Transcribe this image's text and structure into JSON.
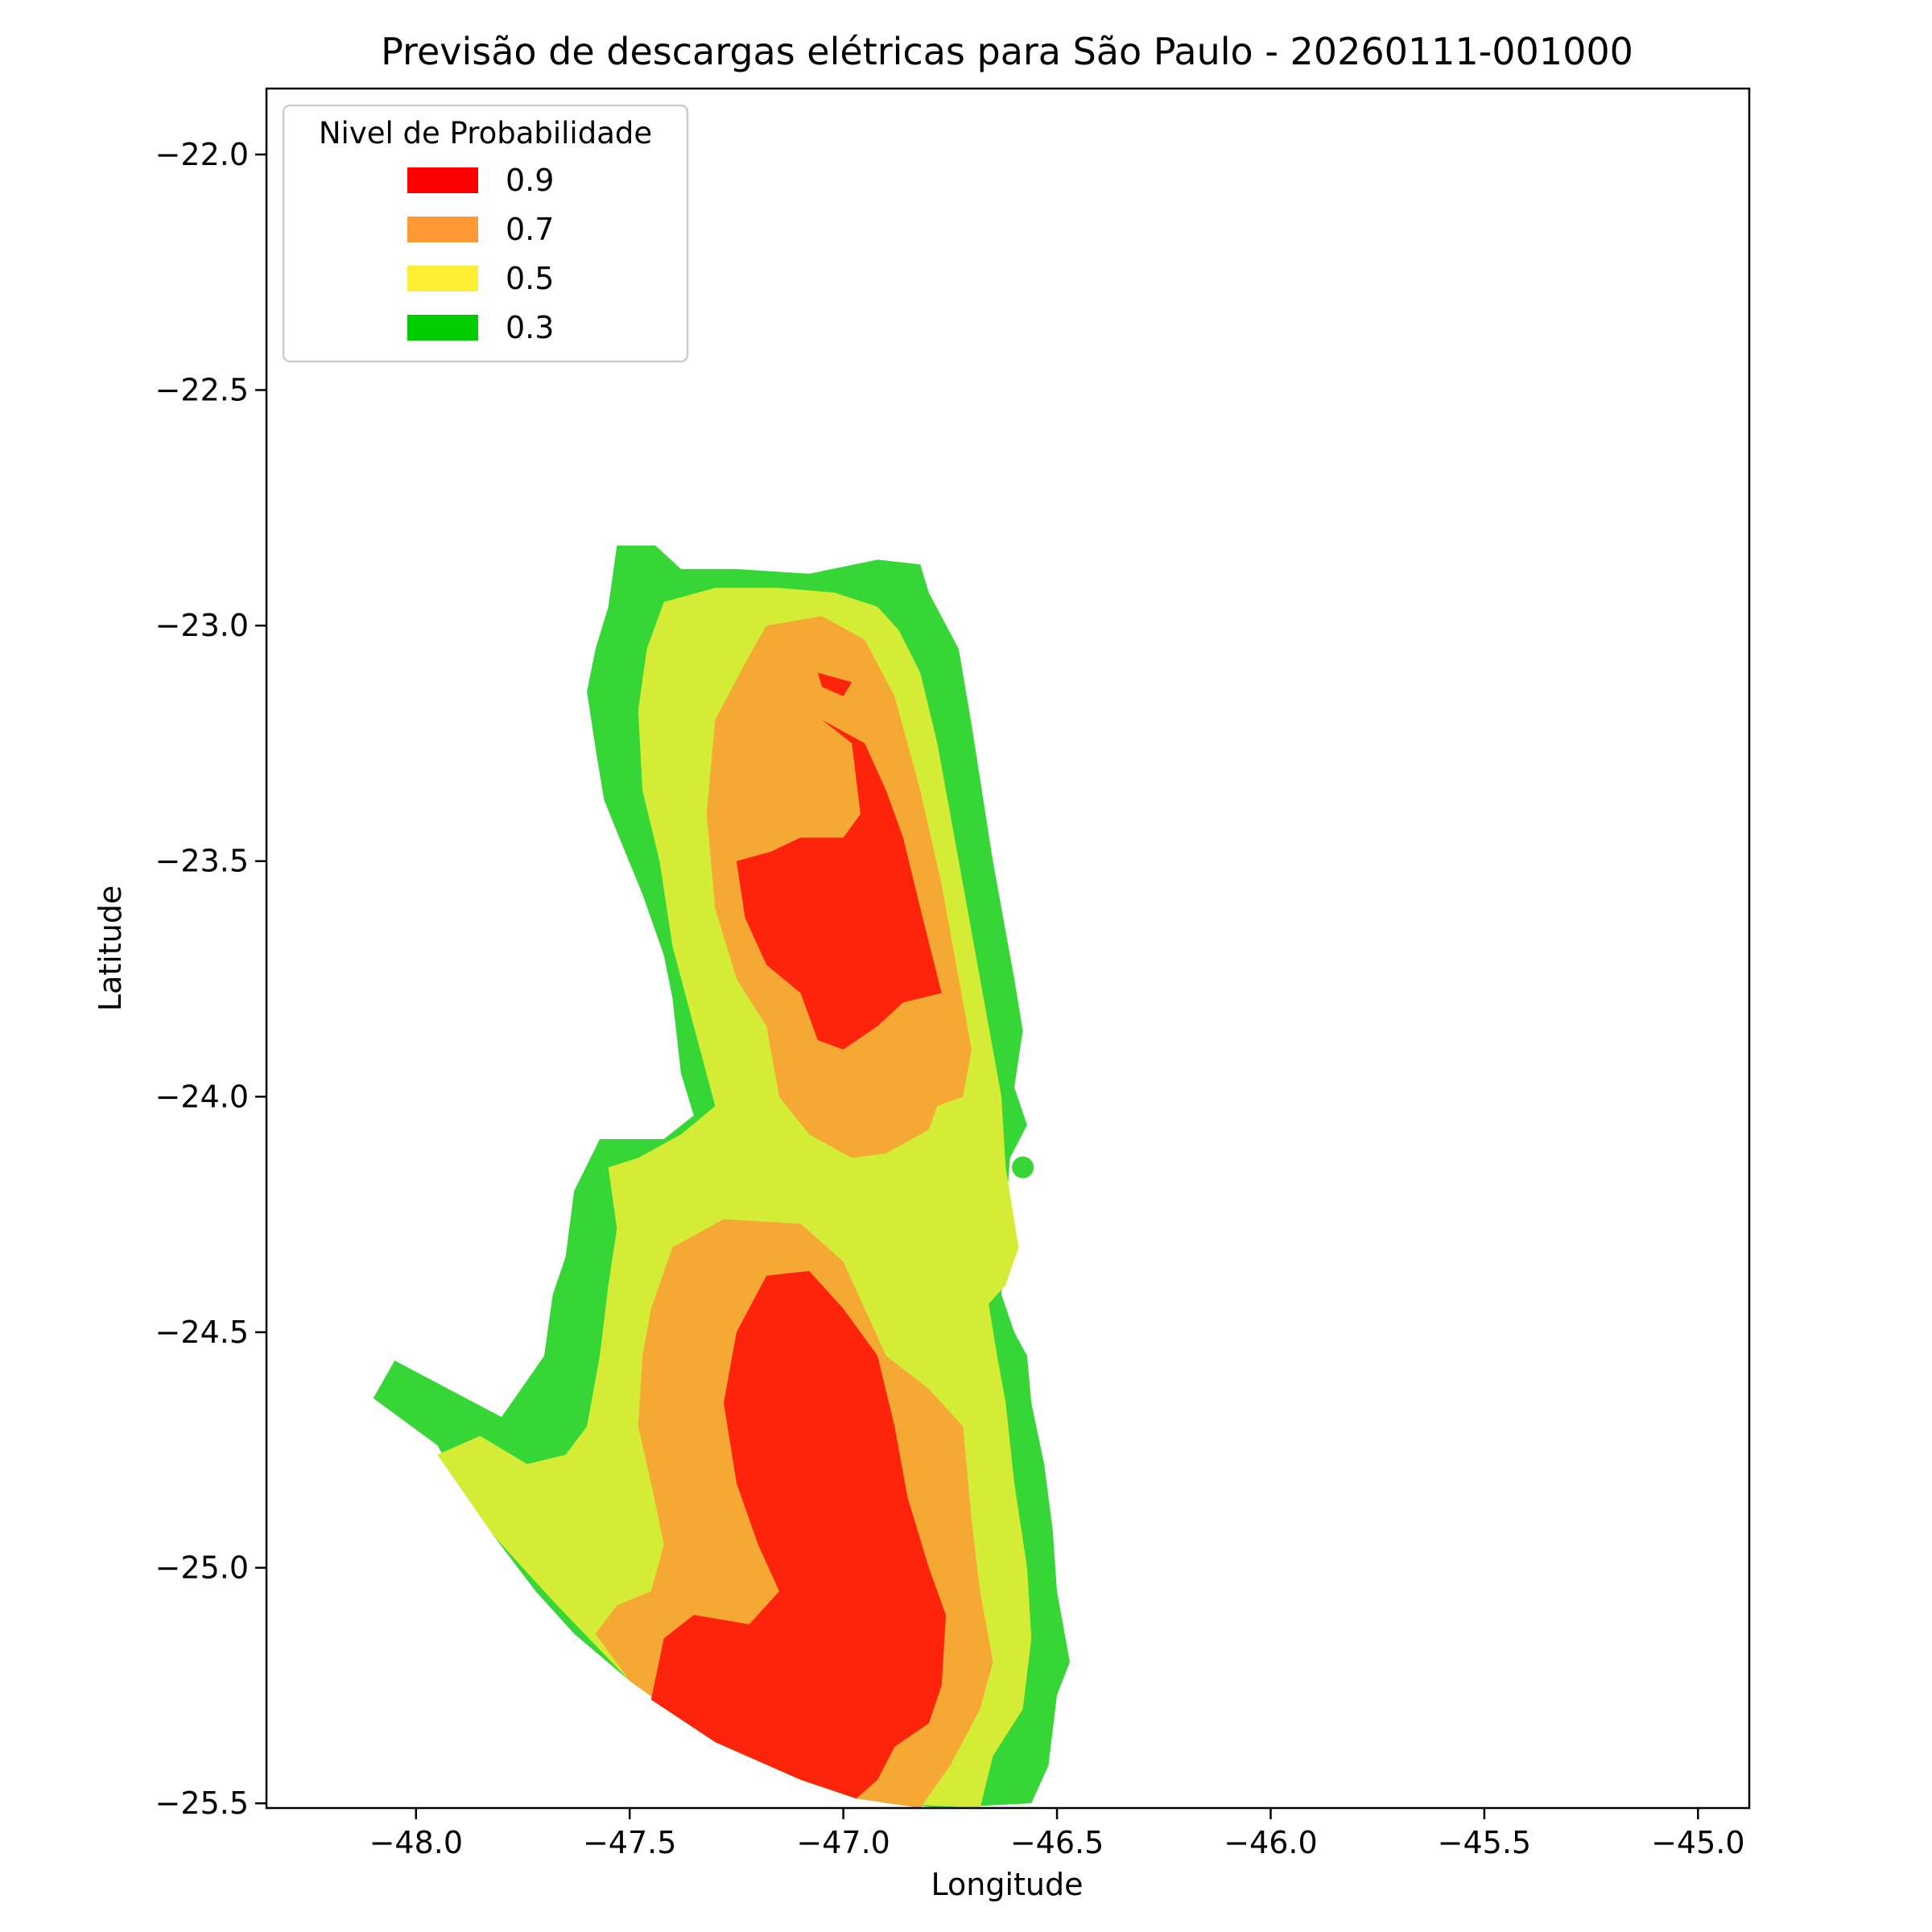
{
  "chart_data": {
    "type": "contour",
    "title": "Previsão de descargas elétricas para São Paulo - 20260111-001000",
    "xlabel": "Longitude",
    "ylabel": "Latitude",
    "xlim": [
      -48.35,
      -44.88
    ],
    "ylim": [
      -25.51,
      -21.86
    ],
    "xticks": [
      -48.0,
      -47.5,
      -47.0,
      -46.5,
      -46.0,
      -45.5,
      -45.0
    ],
    "yticks": [
      -22.0,
      -22.5,
      -23.0,
      -23.5,
      -24.0,
      -24.5,
      -25.0,
      -25.5
    ],
    "xtick_labels": [
      "−48.0",
      "−47.5",
      "−47.0",
      "−46.5",
      "−46.0",
      "−45.5",
      "−45.0"
    ],
    "ytick_labels": [
      "−22.0",
      "−22.5",
      "−23.0",
      "−23.5",
      "−24.0",
      "−24.5",
      "−25.0",
      "−25.5"
    ],
    "grid": false,
    "legend": {
      "title": "Nivel de Probabilidade",
      "placement": "top-left",
      "entries": [
        {
          "label": "0.9",
          "color": "#ff0000"
        },
        {
          "label": "0.7",
          "color": "#ff9933"
        },
        {
          "label": "0.5",
          "color": "#ffee33"
        },
        {
          "label": "0.3",
          "color": "#00cc00"
        }
      ]
    },
    "levels": [
      {
        "level": 0.3,
        "color": "#36d636",
        "polygons": [
          [
            [
              -47.53,
              -22.83
            ],
            [
              -47.44,
              -22.83
            ],
            [
              -47.38,
              -22.88
            ],
            [
              -47.25,
              -22.88
            ],
            [
              -47.08,
              -22.89
            ],
            [
              -46.92,
              -22.86
            ],
            [
              -46.82,
              -22.87
            ],
            [
              -46.8,
              -22.93
            ],
            [
              -46.73,
              -23.05
            ],
            [
              -46.7,
              -23.21
            ],
            [
              -46.65,
              -23.5
            ],
            [
              -46.6,
              -23.75
            ],
            [
              -46.58,
              -23.86
            ],
            [
              -46.6,
              -23.98
            ],
            [
              -46.57,
              -24.06
            ],
            [
              -46.61,
              -24.13
            ],
            [
              -46.62,
              -24.25
            ],
            [
              -46.63,
              -24.42
            ],
            [
              -46.6,
              -24.5
            ],
            [
              -46.57,
              -24.55
            ],
            [
              -46.56,
              -24.65
            ],
            [
              -46.53,
              -24.78
            ],
            [
              -46.51,
              -24.92
            ],
            [
              -46.5,
              -25.05
            ],
            [
              -46.47,
              -25.2
            ],
            [
              -46.5,
              -25.27
            ],
            [
              -46.52,
              -25.42
            ],
            [
              -46.56,
              -25.5
            ],
            [
              -46.78,
              -25.51
            ],
            [
              -46.95,
              -25.49
            ],
            [
              -47.1,
              -25.45
            ],
            [
              -47.3,
              -25.37
            ],
            [
              -47.5,
              -25.24
            ],
            [
              -47.63,
              -25.14
            ],
            [
              -47.72,
              -25.05
            ],
            [
              -47.82,
              -24.93
            ],
            [
              -47.9,
              -24.82
            ],
            [
              -47.95,
              -24.74
            ],
            [
              -48.1,
              -24.64
            ],
            [
              -48.05,
              -24.56
            ],
            [
              -47.8,
              -24.68
            ],
            [
              -47.7,
              -24.55
            ],
            [
              -47.68,
              -24.42
            ],
            [
              -47.65,
              -24.34
            ],
            [
              -47.63,
              -24.2
            ],
            [
              -47.57,
              -24.09
            ],
            [
              -47.42,
              -24.09
            ],
            [
              -47.35,
              -24.04
            ],
            [
              -47.38,
              -23.95
            ],
            [
              -47.4,
              -23.79
            ],
            [
              -47.42,
              -23.7
            ],
            [
              -47.47,
              -23.57
            ],
            [
              -47.52,
              -23.46
            ],
            [
              -47.56,
              -23.37
            ],
            [
              -47.58,
              -23.26
            ],
            [
              -47.6,
              -23.14
            ],
            [
              -47.58,
              -23.05
            ],
            [
              -47.55,
              -22.96
            ],
            [
              -47.53,
              -22.83
            ]
          ]
        ]
      },
      {
        "level": 0.5,
        "color": "#d5ec37",
        "polygons": [
          [
            [
              -47.42,
              -22.95
            ],
            [
              -47.3,
              -22.92
            ],
            [
              -47.15,
              -22.92
            ],
            [
              -47.02,
              -22.93
            ],
            [
              -46.92,
              -22.96
            ],
            [
              -46.87,
              -23.01
            ],
            [
              -46.82,
              -23.1
            ],
            [
              -46.78,
              -23.25
            ],
            [
              -46.73,
              -23.5
            ],
            [
              -46.68,
              -23.75
            ],
            [
              -46.63,
              -24.0
            ],
            [
              -46.62,
              -24.15
            ],
            [
              -46.59,
              -24.32
            ],
            [
              -46.62,
              -24.4
            ],
            [
              -46.66,
              -24.44
            ],
            [
              -46.64,
              -24.55
            ],
            [
              -46.62,
              -24.65
            ],
            [
              -46.6,
              -24.82
            ],
            [
              -46.57,
              -25.0
            ],
            [
              -46.56,
              -25.15
            ],
            [
              -46.58,
              -25.3
            ],
            [
              -46.65,
              -25.4
            ],
            [
              -46.68,
              -25.51
            ],
            [
              -46.9,
              -25.5
            ],
            [
              -47.1,
              -25.45
            ],
            [
              -47.3,
              -25.37
            ],
            [
              -47.5,
              -25.24
            ],
            [
              -47.68,
              -25.07
            ],
            [
              -47.82,
              -24.93
            ],
            [
              -47.95,
              -24.76
            ],
            [
              -47.85,
              -24.72
            ],
            [
              -47.74,
              -24.78
            ],
            [
              -47.65,
              -24.76
            ],
            [
              -47.6,
              -24.7
            ],
            [
              -47.57,
              -24.55
            ],
            [
              -47.55,
              -24.4
            ],
            [
              -47.53,
              -24.28
            ],
            [
              -47.55,
              -24.15
            ],
            [
              -47.48,
              -24.13
            ],
            [
              -47.38,
              -24.08
            ],
            [
              -47.3,
              -24.02
            ],
            [
              -47.35,
              -23.85
            ],
            [
              -47.4,
              -23.68
            ],
            [
              -47.43,
              -23.5
            ],
            [
              -47.47,
              -23.35
            ],
            [
              -47.48,
              -23.18
            ],
            [
              -47.46,
              -23.05
            ],
            [
              -47.42,
              -22.95
            ]
          ]
        ]
      },
      {
        "level": 0.7,
        "color": "#f5a833",
        "polygons": [
          [
            [
              -47.18,
              -23.0
            ],
            [
              -47.05,
              -22.98
            ],
            [
              -46.95,
              -23.03
            ],
            [
              -46.88,
              -23.15
            ],
            [
              -46.82,
              -23.35
            ],
            [
              -46.77,
              -23.55
            ],
            [
              -46.73,
              -23.75
            ],
            [
              -46.7,
              -23.9
            ],
            [
              -46.72,
              -24.0
            ],
            [
              -46.78,
              -24.02
            ],
            [
              -46.8,
              -24.07
            ],
            [
              -46.9,
              -24.12
            ],
            [
              -46.98,
              -24.13
            ],
            [
              -47.08,
              -24.08
            ],
            [
              -47.15,
              -24.0
            ],
            [
              -47.18,
              -23.85
            ],
            [
              -47.25,
              -23.75
            ],
            [
              -47.3,
              -23.6
            ],
            [
              -47.32,
              -23.4
            ],
            [
              -47.3,
              -23.2
            ],
            [
              -47.23,
              -23.08
            ],
            [
              -47.18,
              -23.0
            ]
          ],
          [
            [
              -47.4,
              -24.32
            ],
            [
              -47.28,
              -24.26
            ],
            [
              -47.1,
              -24.27
            ],
            [
              -47.0,
              -24.35
            ],
            [
              -46.95,
              -24.45
            ],
            [
              -46.9,
              -24.55
            ],
            [
              -46.8,
              -24.62
            ],
            [
              -46.72,
              -24.7
            ],
            [
              -46.7,
              -24.9
            ],
            [
              -46.68,
              -25.05
            ],
            [
              -46.65,
              -25.2
            ],
            [
              -46.68,
              -25.3
            ],
            [
              -46.75,
              -25.42
            ],
            [
              -46.82,
              -25.51
            ],
            [
              -46.97,
              -25.49
            ],
            [
              -47.1,
              -25.45
            ],
            [
              -47.3,
              -25.37
            ],
            [
              -47.5,
              -25.24
            ],
            [
              -47.58,
              -25.14
            ],
            [
              -47.53,
              -25.08
            ],
            [
              -47.45,
              -25.05
            ],
            [
              -47.42,
              -24.95
            ],
            [
              -47.45,
              -24.82
            ],
            [
              -47.48,
              -24.7
            ],
            [
              -47.47,
              -24.55
            ],
            [
              -47.45,
              -24.45
            ],
            [
              -47.4,
              -24.32
            ]
          ]
        ]
      },
      {
        "level": 0.9,
        "color": "#fe240b",
        "polygons": [
          [
            [
              -47.05,
              -23.2
            ],
            [
              -46.98,
              -23.25
            ],
            [
              -46.96,
              -23.4
            ],
            [
              -47.0,
              -23.45
            ],
            [
              -47.1,
              -23.45
            ],
            [
              -47.17,
              -23.48
            ],
            [
              -47.25,
              -23.5
            ],
            [
              -47.23,
              -23.62
            ],
            [
              -47.18,
              -23.72
            ],
            [
              -47.1,
              -23.78
            ],
            [
              -47.06,
              -23.88
            ],
            [
              -47.0,
              -23.9
            ],
            [
              -46.92,
              -23.85
            ],
            [
              -46.86,
              -23.8
            ],
            [
              -46.77,
              -23.78
            ],
            [
              -46.82,
              -23.6
            ],
            [
              -46.86,
              -23.45
            ],
            [
              -46.9,
              -23.35
            ],
            [
              -46.95,
              -23.25
            ],
            [
              -47.05,
              -23.2
            ]
          ],
          [
            [
              -47.06,
              -23.1
            ],
            [
              -46.98,
              -23.12
            ],
            [
              -47.0,
              -23.15
            ],
            [
              -47.05,
              -23.13
            ],
            [
              -47.06,
              -23.1
            ]
          ],
          [
            [
              -47.18,
              -24.38
            ],
            [
              -47.08,
              -24.37
            ],
            [
              -47.0,
              -24.45
            ],
            [
              -46.92,
              -24.55
            ],
            [
              -46.88,
              -24.7
            ],
            [
              -46.85,
              -24.85
            ],
            [
              -46.8,
              -25.0
            ],
            [
              -46.76,
              -25.1
            ],
            [
              -46.77,
              -25.25
            ],
            [
              -46.8,
              -25.33
            ],
            [
              -46.88,
              -25.38
            ],
            [
              -46.92,
              -25.45
            ],
            [
              -46.97,
              -25.49
            ],
            [
              -47.1,
              -25.45
            ],
            [
              -47.3,
              -25.37
            ],
            [
              -47.45,
              -25.28
            ],
            [
              -47.42,
              -25.15
            ],
            [
              -47.35,
              -25.1
            ],
            [
              -47.22,
              -25.12
            ],
            [
              -47.15,
              -25.05
            ],
            [
              -47.2,
              -24.95
            ],
            [
              -47.25,
              -24.82
            ],
            [
              -47.28,
              -24.65
            ],
            [
              -47.25,
              -24.5
            ],
            [
              -47.18,
              -24.38
            ]
          ]
        ]
      }
    ],
    "markers": [
      {
        "lon": -46.58,
        "lat": -24.15,
        "color": "#36d636"
      },
      {
        "lon": -47.17,
        "lat": -25.21,
        "color": "#fe240b"
      }
    ]
  }
}
